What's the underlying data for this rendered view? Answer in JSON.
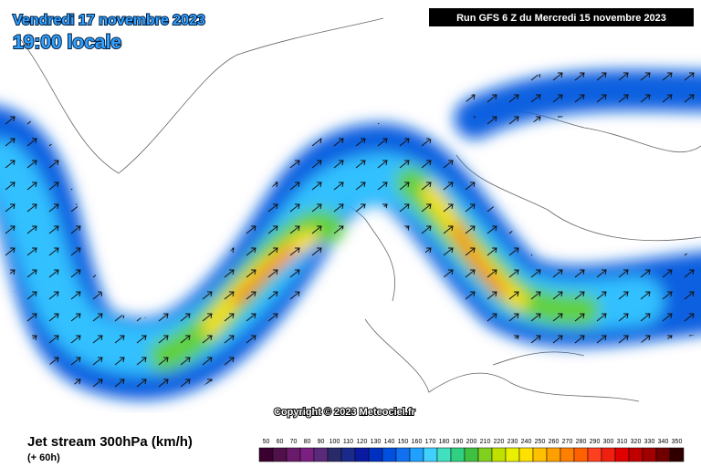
{
  "header": {
    "valid_date": "Vendredi 17 novembre 2023",
    "local_time": "19:00 locale",
    "run": "Run GFS 6 Z du Mercredi 15 novembre 2023"
  },
  "copyright": "Copyright © 2023 Meteociel.fr",
  "footer": {
    "title": "Jet stream 300hPa (km/h)",
    "lead": "(+ 60h)"
  },
  "legend": {
    "items": [
      {
        "label": 50,
        "color": "#3a0030"
      },
      {
        "label": 60,
        "color": "#50104a"
      },
      {
        "label": 70,
        "color": "#6a1a6a"
      },
      {
        "label": 80,
        "color": "#7a2080"
      },
      {
        "label": 90,
        "color": "#5a2a7a"
      },
      {
        "label": 100,
        "color": "#2a2a6a"
      },
      {
        "label": 110,
        "color": "#1a2a8a"
      },
      {
        "label": 120,
        "color": "#0a1aa0"
      },
      {
        "label": 130,
        "color": "#0030c0"
      },
      {
        "label": 140,
        "color": "#0050e0"
      },
      {
        "label": 150,
        "color": "#1070f0"
      },
      {
        "label": 160,
        "color": "#20a0ff"
      },
      {
        "label": 170,
        "color": "#40d0ff"
      },
      {
        "label": 180,
        "color": "#40e0c0"
      },
      {
        "label": 190,
        "color": "#30d080"
      },
      {
        "label": 200,
        "color": "#40c040"
      },
      {
        "label": 210,
        "color": "#80d020"
      },
      {
        "label": 220,
        "color": "#c0e000"
      },
      {
        "label": 230,
        "color": "#e8f000"
      },
      {
        "label": 240,
        "color": "#ffe000"
      },
      {
        "label": 250,
        "color": "#ffc000"
      },
      {
        "label": 260,
        "color": "#ffa000"
      },
      {
        "label": 270,
        "color": "#ff8000"
      },
      {
        "label": 280,
        "color": "#ff6000"
      },
      {
        "label": 290,
        "color": "#ff4020"
      },
      {
        "label": 300,
        "color": "#f02010"
      },
      {
        "label": 310,
        "color": "#e00000"
      },
      {
        "label": 320,
        "color": "#c00000"
      },
      {
        "label": 330,
        "color": "#a00000"
      },
      {
        "label": 340,
        "color": "#700000"
      },
      {
        "label": 350,
        "color": "#300000"
      }
    ]
  }
}
